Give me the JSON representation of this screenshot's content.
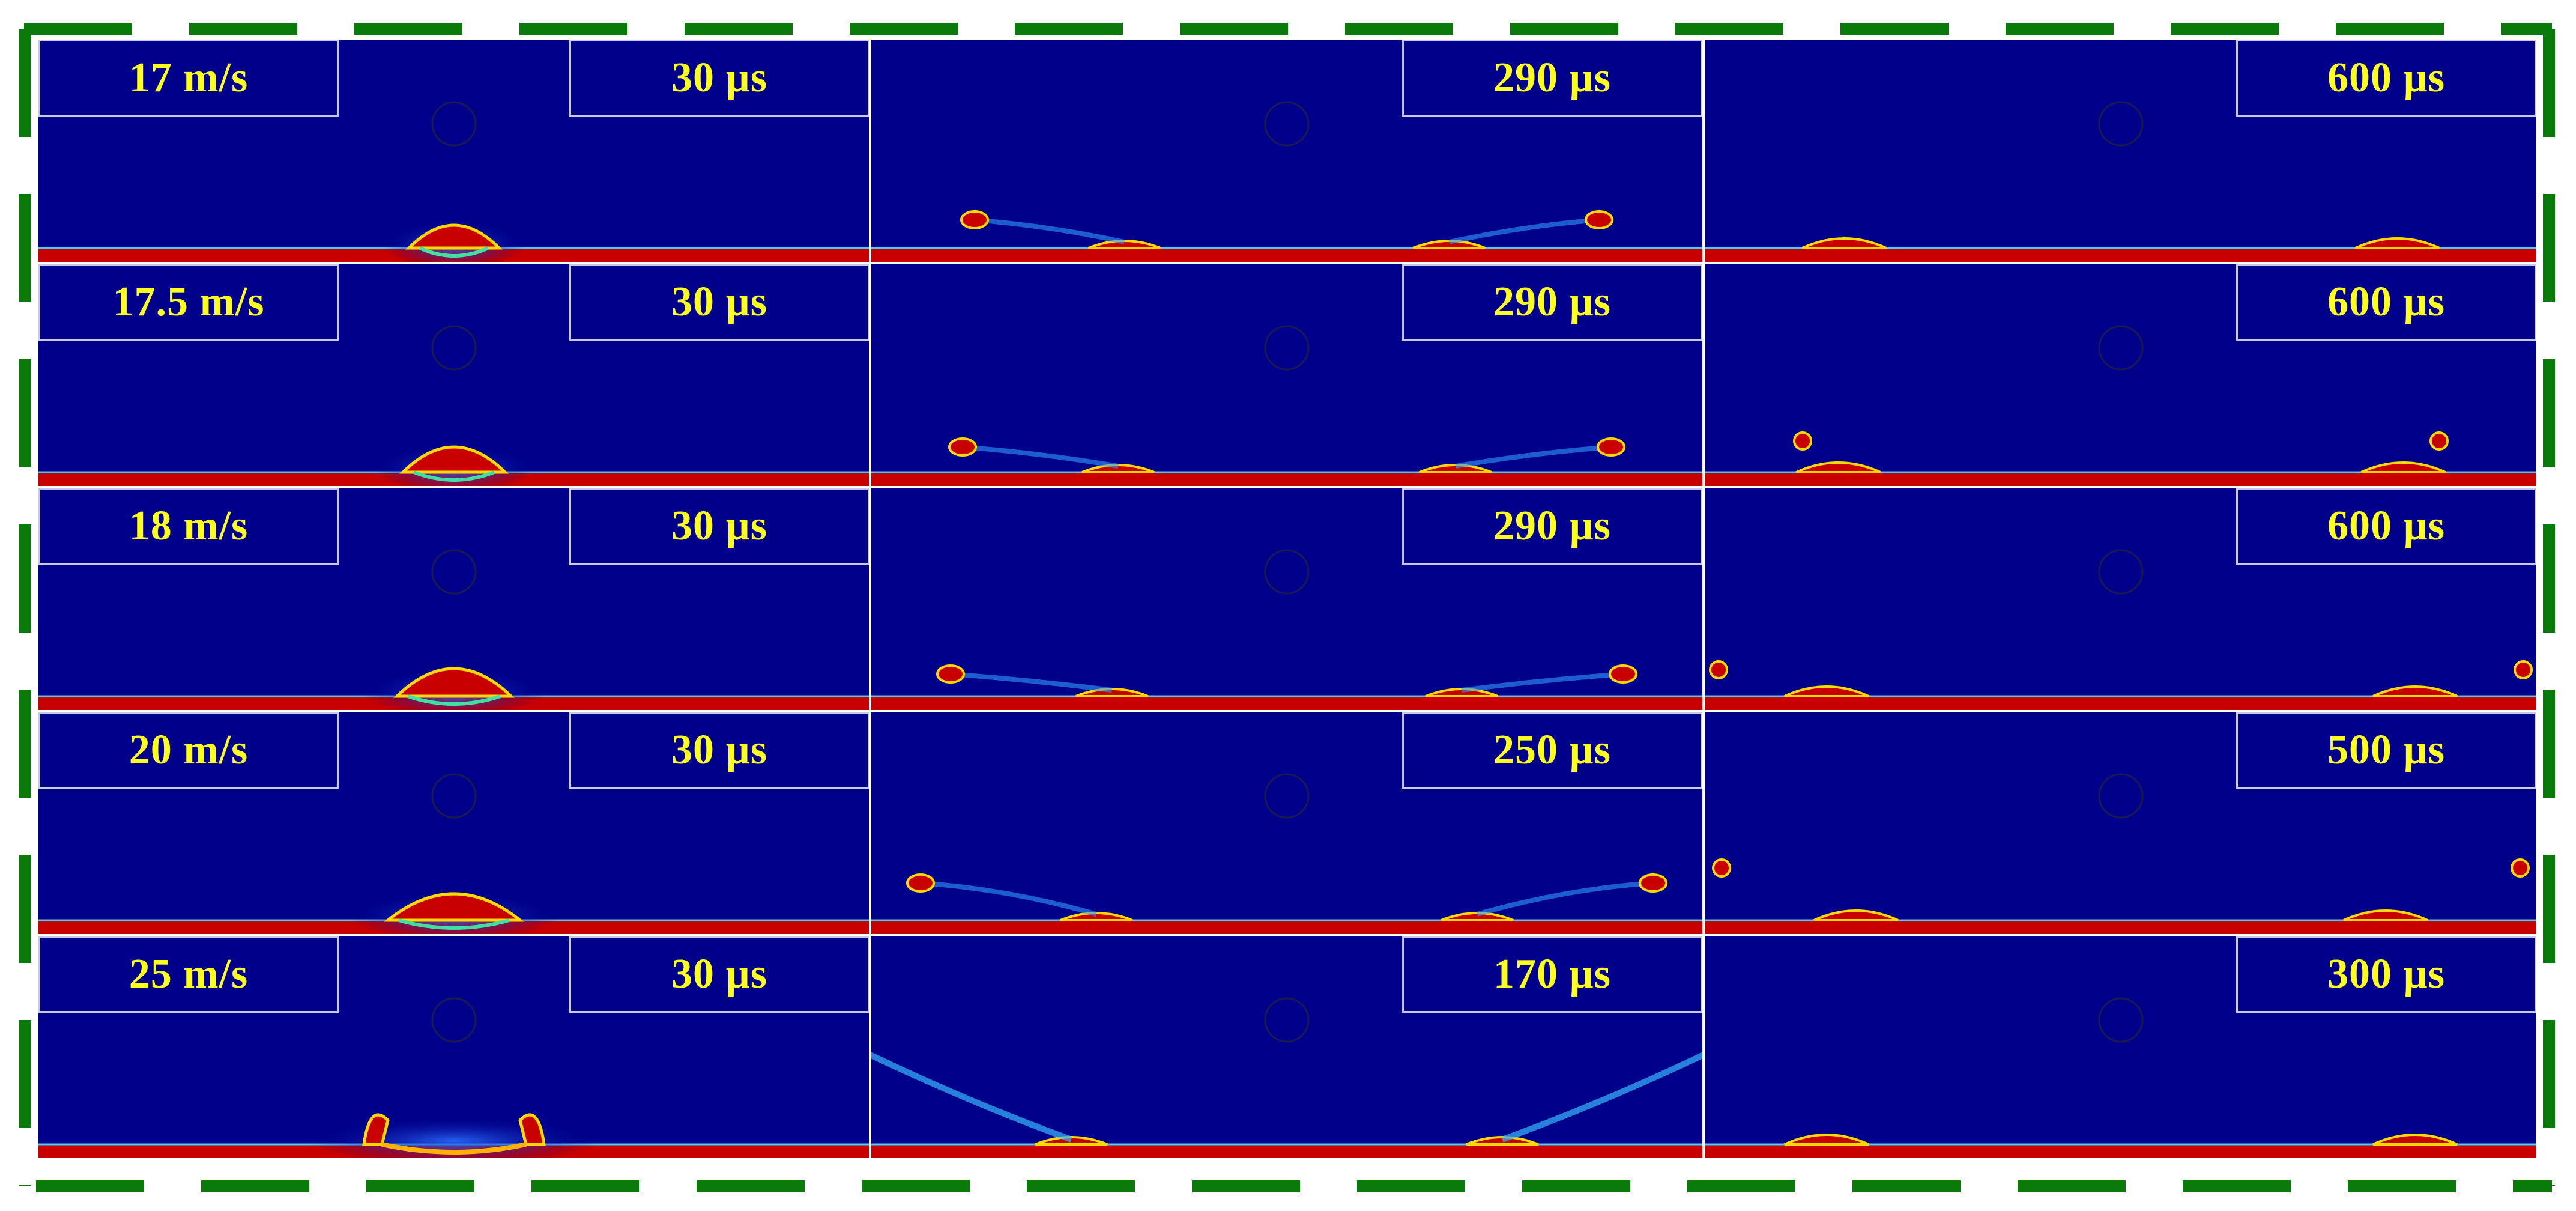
{
  "figure": {
    "frame_color": "#0a7a0a",
    "colors": {
      "background": "#00008a",
      "liquid": "#c80000",
      "interface": "#ffd800",
      "label_text": "#ffff1e",
      "label_border": "#c8c8e8"
    },
    "rows": [
      {
        "velocity": "17 m/s",
        "times": [
          "30 µs",
          "290 µs",
          "600 µs"
        ],
        "late_droplets": 0
      },
      {
        "velocity": "17.5 m/s",
        "times": [
          "30 µs",
          "290 µs",
          "600 µs"
        ],
        "late_droplets": 2
      },
      {
        "velocity": "18 m/s",
        "times": [
          "30 µs",
          "290 µs",
          "600 µs"
        ],
        "late_droplets": 2
      },
      {
        "velocity": "20 m/s",
        "times": [
          "30 µs",
          "250 µs",
          "500 µs"
        ],
        "late_droplets": 2
      },
      {
        "velocity": "25 m/s",
        "times": [
          "30 µs",
          "170 µs",
          "300 µs"
        ],
        "late_droplets": 0
      }
    ]
  }
}
